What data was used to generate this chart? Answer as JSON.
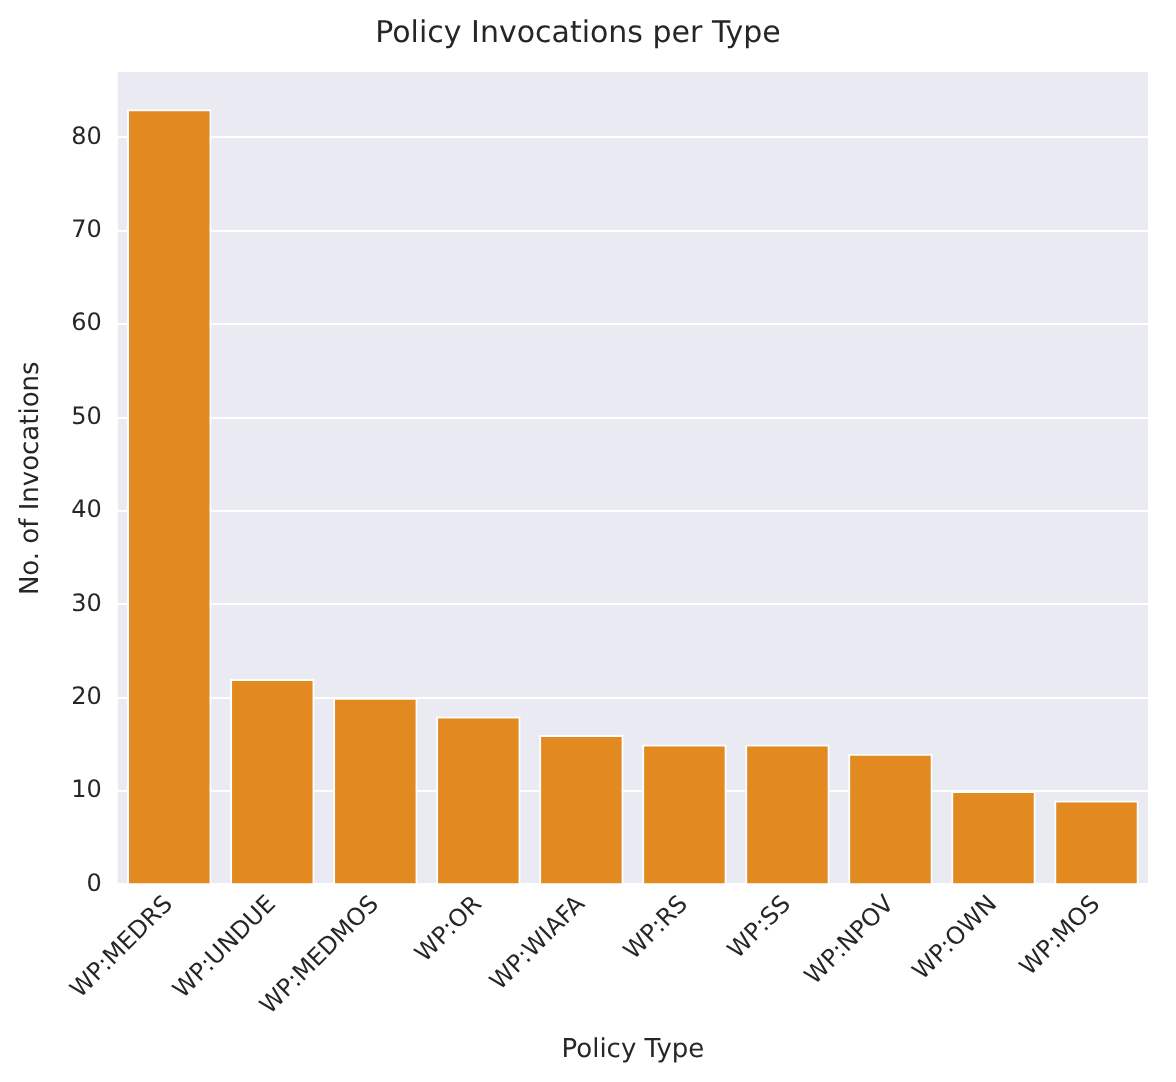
{
  "chart_data": {
    "type": "bar",
    "title": "Policy Invocations per Type",
    "xlabel": "Policy Type",
    "ylabel": "No. of Invocations",
    "categories": [
      "WP:MEDRS",
      "WP:UNDUE",
      "WP:MEDMOS",
      "WP:OR",
      "WP:WIAFA",
      "WP:RS",
      "WP:SS",
      "WP:NPOV",
      "WP:OWN",
      "WP:MOS"
    ],
    "values": [
      83,
      22,
      20,
      18,
      16,
      15,
      15,
      14,
      10,
      9
    ],
    "color": "#e28a1f",
    "ylim": [
      0,
      87
    ],
    "yticks": [
      0,
      10,
      20,
      30,
      40,
      50,
      60,
      70,
      80
    ],
    "grid": "y"
  }
}
